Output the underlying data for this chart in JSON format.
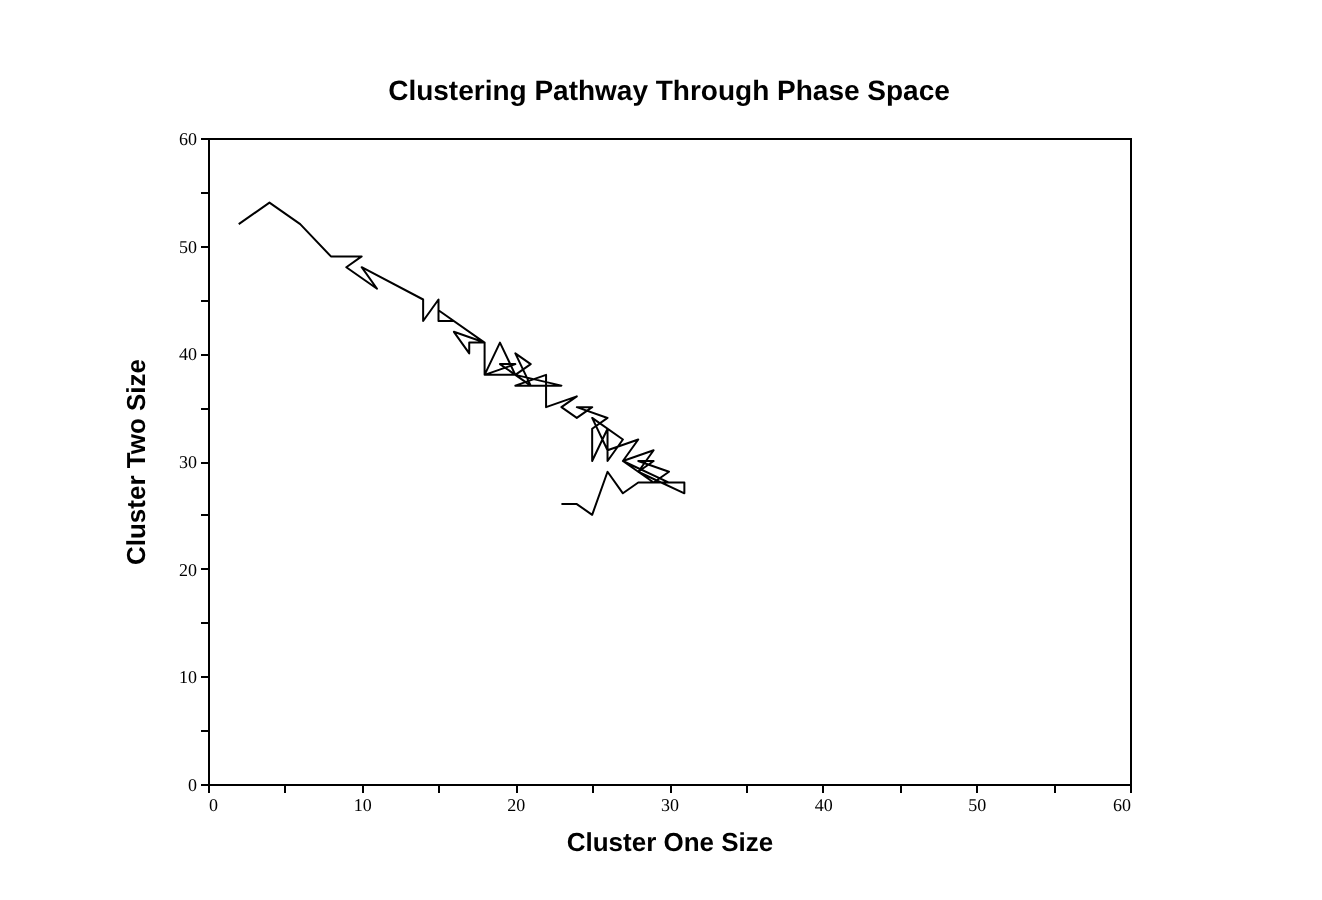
{
  "chart_data": {
    "type": "line",
    "title": "Clustering Pathway Through Phase Space",
    "xlabel": "Cluster One Size",
    "ylabel": "Cluster Two Size",
    "x": [
      2,
      4,
      6,
      8,
      10,
      9,
      11,
      10,
      14,
      14,
      15,
      15,
      16,
      15,
      18,
      16,
      17,
      17,
      18,
      18,
      19,
      20,
      18,
      20,
      19,
      21,
      20,
      21,
      20,
      23,
      20,
      22,
      22,
      24,
      23,
      24,
      25,
      24,
      26,
      25,
      25,
      26,
      26,
      27,
      25,
      26,
      28,
      27,
      29,
      28,
      29,
      28,
      30,
      29,
      31,
      31,
      28,
      29,
      27,
      30,
      28,
      27,
      26,
      25,
      24,
      23
    ],
    "series": [
      {
        "color": "#000000",
        "values": [
          52,
          54,
          52,
          49,
          49,
          48,
          46,
          48,
          45,
          43,
          45,
          43,
          43,
          44,
          41,
          42,
          40,
          41,
          41,
          38,
          41,
          38,
          38,
          39,
          39,
          37,
          40,
          39,
          38,
          37,
          37,
          38,
          35,
          36,
          35,
          34,
          35,
          35,
          34,
          33,
          30,
          33,
          30,
          32,
          34,
          31,
          32,
          30,
          31,
          29,
          30,
          30,
          29,
          28,
          28,
          27,
          29,
          28,
          30,
          28,
          28,
          27,
          29,
          25,
          26,
          26
        ]
      }
    ],
    "xlim": [
      0,
      60
    ],
    "ylim": [
      0,
      60
    ],
    "xticks": [
      0,
      {
        "value": 5,
        "label": null
      },
      10,
      {
        "value": 15,
        "label": null
      },
      20,
      {
        "value": 25,
        "label": null
      },
      30,
      {
        "value": 35,
        "label": null
      },
      40,
      {
        "value": 45,
        "label": null
      },
      50,
      {
        "value": 55,
        "label": null
      },
      60
    ],
    "yticks": [
      0,
      {
        "value": 5,
        "label": null
      },
      10,
      {
        "value": 15,
        "label": null
      },
      20,
      {
        "value": 25,
        "label": null
      },
      30,
      {
        "value": 35,
        "label": null
      },
      40,
      {
        "value": 45,
        "label": null
      },
      50,
      {
        "value": 55,
        "label": null
      },
      60
    ],
    "grid": false,
    "marker": "none",
    "line_style": "solid"
  }
}
